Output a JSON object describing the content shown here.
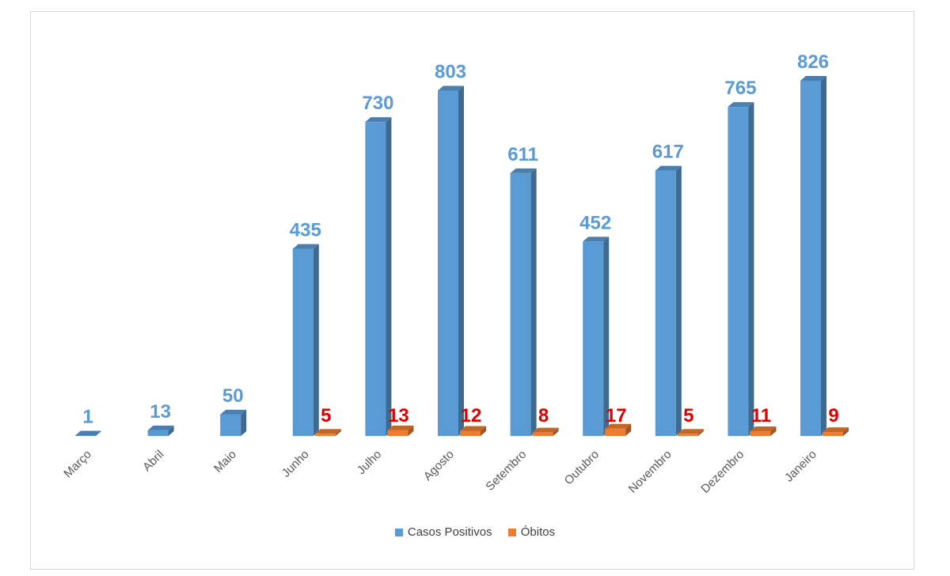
{
  "chart_data": {
    "type": "bar",
    "categories": [
      "Março",
      "Abril",
      "Maio",
      "Junho",
      "Julho",
      "Agosto",
      "Setembro",
      "Outubro",
      "Novembro",
      "Dezembro",
      "Janeiro"
    ],
    "series": [
      {
        "name": "Casos Positivos",
        "color": "#5b9bd5",
        "label_color": "#5b9bd5",
        "values": [
          1,
          13,
          50,
          435,
          730,
          803,
          611,
          452,
          617,
          765,
          826
        ],
        "labels": [
          "1",
          "13",
          "50",
          "435",
          "730",
          "803",
          "611",
          "452",
          "617",
          "765",
          "826"
        ]
      },
      {
        "name": "Óbitos",
        "color": "#ed7d31",
        "label_color": "#e00000",
        "values": [
          null,
          null,
          null,
          5,
          13,
          12,
          8,
          17,
          5,
          11,
          9
        ],
        "labels": [
          "",
          "",
          "",
          "5",
          "13",
          "12",
          "8",
          "17",
          "5",
          "11",
          "9"
        ]
      }
    ],
    "ylim": [
      0,
      826
    ],
    "style": "3d-columns",
    "legend_position": "bottom",
    "grid": false
  }
}
